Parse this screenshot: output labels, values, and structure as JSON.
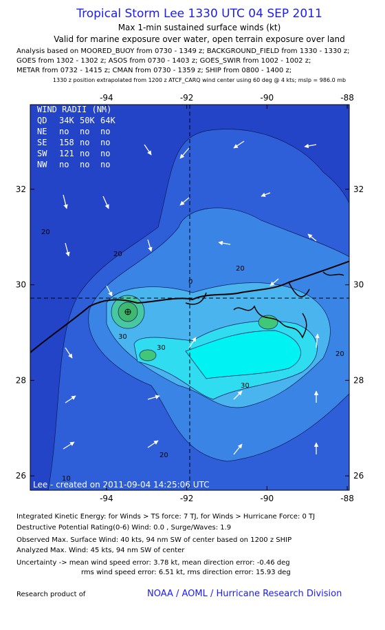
{
  "header": {
    "title": "Tropical Storm Lee 1330 UTC 04 SEP 2011",
    "subtitle": "Max 1-min sustained surface winds (kt)",
    "validity": "Valid for marine exposure over water, open terrain exposure over land",
    "analysis": [
      "Analysis based on MOORED_BUOY from 0730 - 1349 z; BACKGROUND_FIELD from 1330 - 1330 z;",
      "GOES from 1302 - 1302 z; ASOS from 0730 - 1403 z; GOES_SWIR from 1002 - 1002 z;",
      "METAR from 0732 - 1415 z; CMAN from 0730 - 1359 z; SHIP from 0800 - 1400 z;"
    ],
    "note": "1330 z position extrapolated from 1200 z ATCF_CARQ wind center using 60 deg @ 4 kts; mslp = 986.0 mb"
  },
  "map": {
    "lonlim": [
      -95.9,
      -87.95
    ],
    "latlim": [
      25.7,
      33.77
    ],
    "lon_ticks": [
      -94,
      -92,
      -90,
      -88
    ],
    "lat_ticks": [
      32,
      30,
      28,
      26
    ],
    "wind_radii": {
      "title": "WIND RADII (NM)",
      "header": [
        "QD",
        "34K",
        "50K",
        "64K"
      ],
      "rows": [
        [
          "NE",
          "no",
          "no",
          "no"
        ],
        [
          "SE",
          158,
          "no",
          "no"
        ],
        [
          "SW",
          121,
          "no",
          "no"
        ],
        [
          "NW",
          "no",
          "no",
          "no"
        ]
      ]
    },
    "contour_labels": [
      20,
      20,
      30,
      30,
      0,
      20,
      30,
      20,
      20,
      10
    ],
    "credit": "Lee - created on 2011-09-04 14:25:06 UTC"
  },
  "footer": {
    "lines": [
      "Integrated Kinetic Energy:  for Winds > TS force: 7 TJ,  for Winds > Hurricane Force: 0 TJ",
      "Destructive Potential Rating(0-6)   Wind: 0.0 , Surge/Waves: 1.9",
      "Observed Max. Surface Wind: 40 kts, 94 nm SW of center based on 1200 z SHIP",
      "Analyzed Max. Wind: 45 kts, 94 nm SW of center",
      "Uncertainty -> mean wind speed error: 3.78 kt,   mean direction error:  -0.46 deg",
      "rms wind speed error: 6.51 kt,   rms direction error: 15.93 deg"
    ],
    "research": "Research product of",
    "org": "NOAA / AOML / Hurricane Research Division"
  }
}
